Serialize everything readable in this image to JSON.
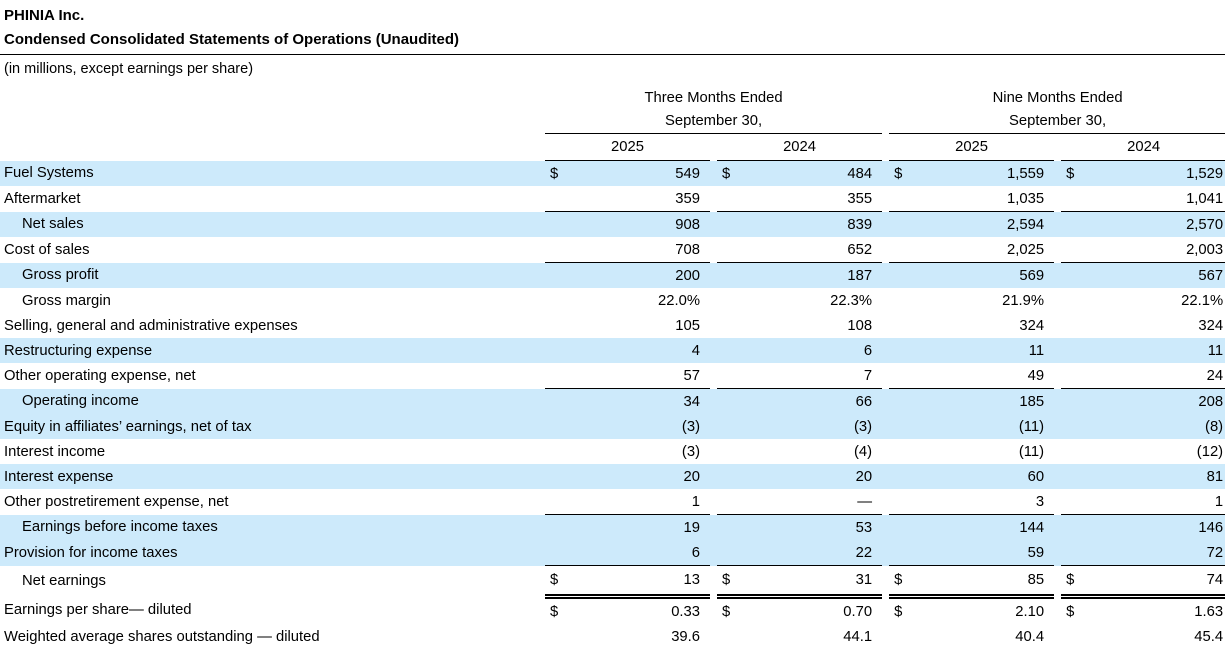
{
  "page": {
    "company": "PHINIA Inc.",
    "title": "Condensed Consolidated Statements of Operations (Unaudited)",
    "note": "(in millions, except earnings per share)"
  },
  "colors": {
    "highlight": "#cdeafb",
    "rule": "#000000",
    "text": "#000000"
  },
  "table": {
    "groups": [
      {
        "title": "Three Months Ended",
        "subtitle": "September 30,",
        "years": [
          "2025",
          "2024"
        ]
      },
      {
        "title": "Nine Months Ended",
        "subtitle": "September 30,",
        "years": [
          "2025",
          "2024"
        ]
      }
    ],
    "rows": [
      {
        "label": "Fuel Systems",
        "indent": false,
        "highlight": true,
        "dollar": true,
        "top_rule": false,
        "double_bottom": false,
        "values": [
          "549",
          "484",
          "1,559",
          "1,529"
        ]
      },
      {
        "label": "Aftermarket",
        "indent": false,
        "highlight": false,
        "dollar": false,
        "top_rule": false,
        "double_bottom": false,
        "values": [
          "359",
          "355",
          "1,035",
          "1,041"
        ]
      },
      {
        "label": "Net sales",
        "indent": true,
        "highlight": true,
        "dollar": false,
        "top_rule": true,
        "double_bottom": false,
        "values": [
          "908",
          "839",
          "2,594",
          "2,570"
        ]
      },
      {
        "label": "Cost of sales",
        "indent": false,
        "highlight": false,
        "dollar": false,
        "top_rule": false,
        "double_bottom": false,
        "values": [
          "708",
          "652",
          "2,025",
          "2,003"
        ]
      },
      {
        "label": "Gross profit",
        "indent": true,
        "highlight": true,
        "dollar": false,
        "top_rule": true,
        "double_bottom": false,
        "values": [
          "200",
          "187",
          "569",
          "567"
        ]
      },
      {
        "label": "Gross margin",
        "indent": true,
        "highlight": false,
        "dollar": false,
        "top_rule": false,
        "double_bottom": false,
        "values": [
          "22.0%",
          "22.3%",
          "21.9%",
          "22.1%"
        ]
      },
      {
        "label": "Selling, general and administrative expenses",
        "indent": false,
        "highlight": false,
        "dollar": false,
        "top_rule": false,
        "double_bottom": false,
        "values": [
          "105",
          "108",
          "324",
          "324"
        ]
      },
      {
        "label": "Restructuring expense",
        "indent": false,
        "highlight": true,
        "dollar": false,
        "top_rule": false,
        "double_bottom": false,
        "values": [
          "4",
          "6",
          "11",
          "11"
        ]
      },
      {
        "label": "Other operating expense, net",
        "indent": false,
        "highlight": false,
        "dollar": false,
        "top_rule": false,
        "double_bottom": false,
        "values": [
          "57",
          "7",
          "49",
          "24"
        ]
      },
      {
        "label": "Operating income",
        "indent": true,
        "highlight": true,
        "dollar": false,
        "top_rule": true,
        "double_bottom": false,
        "values": [
          "34",
          "66",
          "185",
          "208"
        ]
      },
      {
        "label": "Equity in affiliates’ earnings, net of tax",
        "indent": false,
        "highlight": true,
        "dollar": false,
        "top_rule": false,
        "double_bottom": false,
        "values": [
          "(3)",
          "(3)",
          "(11)",
          "(8)"
        ]
      },
      {
        "label": "Interest income",
        "indent": false,
        "highlight": false,
        "dollar": false,
        "top_rule": false,
        "double_bottom": false,
        "values": [
          "(3)",
          "(4)",
          "(11)",
          "(12)"
        ]
      },
      {
        "label": "Interest expense",
        "indent": false,
        "highlight": true,
        "dollar": false,
        "top_rule": false,
        "double_bottom": false,
        "values": [
          "20",
          "20",
          "60",
          "81"
        ]
      },
      {
        "label": "Other postretirement expense, net",
        "indent": false,
        "highlight": false,
        "dollar": false,
        "top_rule": false,
        "double_bottom": false,
        "values": [
          "1",
          "—",
          "3",
          "1"
        ]
      },
      {
        "label": "Earnings before income taxes",
        "indent": true,
        "highlight": true,
        "dollar": false,
        "top_rule": true,
        "double_bottom": false,
        "values": [
          "19",
          "53",
          "144",
          "146"
        ]
      },
      {
        "label": "Provision for income taxes",
        "indent": false,
        "highlight": true,
        "dollar": false,
        "top_rule": false,
        "double_bottom": false,
        "values": [
          "6",
          "22",
          "59",
          "72"
        ]
      },
      {
        "label": "Net earnings",
        "indent": true,
        "highlight": false,
        "dollar": true,
        "top_rule": true,
        "double_bottom": true,
        "values": [
          "13",
          "31",
          "85",
          "74"
        ]
      },
      {
        "label": "Earnings per share— diluted",
        "indent": false,
        "highlight": false,
        "dollar": true,
        "top_rule": false,
        "double_bottom": false,
        "values": [
          "0.33",
          "0.70",
          "2.10",
          "1.63"
        ]
      },
      {
        "label": "Weighted average shares outstanding — diluted",
        "indent": false,
        "highlight": false,
        "dollar": false,
        "top_rule": false,
        "double_bottom": false,
        "values": [
          "39.6",
          "44.1",
          "40.4",
          "45.4"
        ]
      }
    ]
  }
}
